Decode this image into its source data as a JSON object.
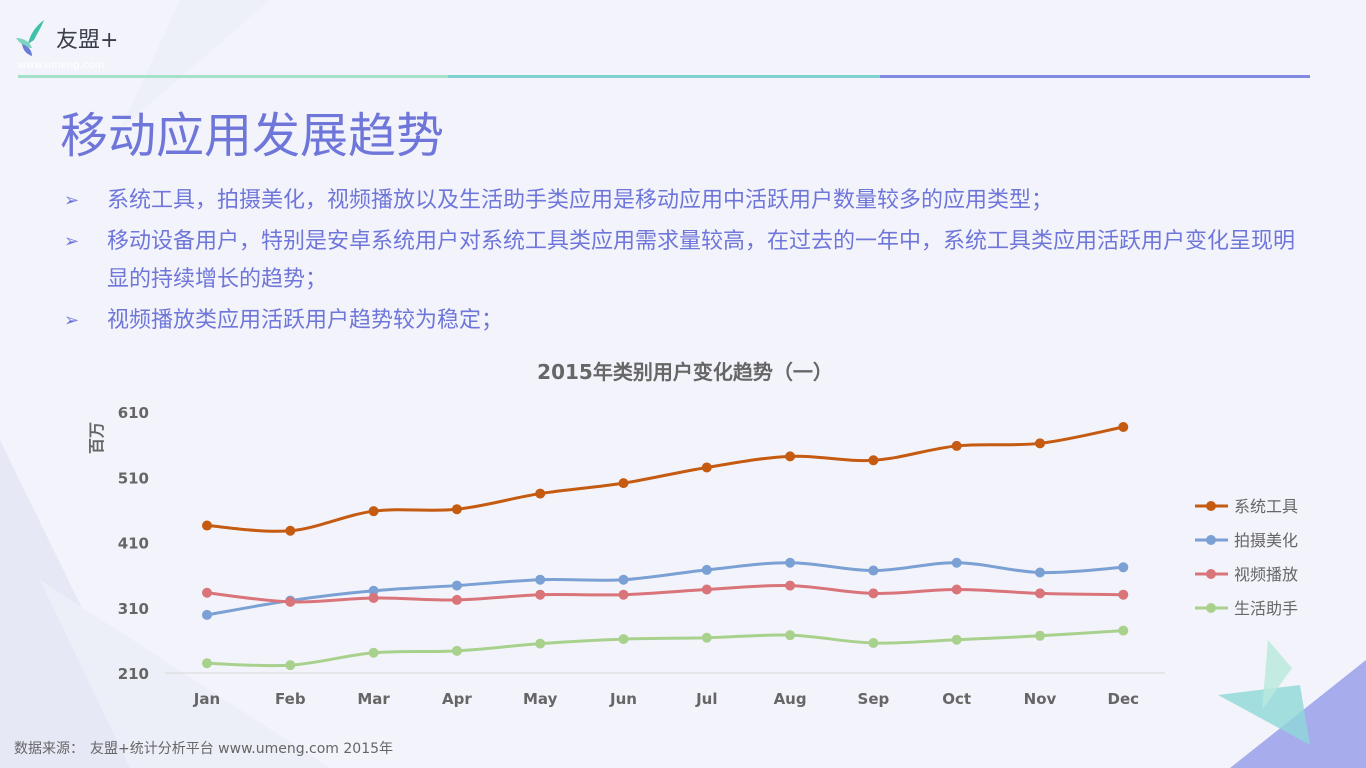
{
  "logo": {
    "name": "友盟+",
    "url": "www.umeng.com"
  },
  "title": "移动应用发展趋势",
  "bullets": [
    "系统工具，拍摄美化，视频播放以及生活助手类应用是移动应用中活跃用户数量较多的应用类型；",
    "移动设备用户，特别是安卓系统用户对系统工具类应用需求量较高，在过去的一年中，系统工具类应用活跃用户变化呈现明显的持续增长的趋势；",
    "视频播放类应用活跃用户趋势较为稳定；"
  ],
  "bullet_icon": "arrow-right-icon",
  "footer": {
    "label": "数据来源：",
    "source": "友盟+统计分析平台 www.umeng.com 2015年"
  },
  "colors": {
    "accent": "#6f76d9"
  },
  "chart_data": {
    "type": "line",
    "title": "2015年类别用户变化趋势（一）",
    "ylabel": "百万",
    "xlabel": "",
    "categories": [
      "Jan",
      "Feb",
      "Mar",
      "Apr",
      "May",
      "Jun",
      "Jul",
      "Aug",
      "Sep",
      "Oct",
      "Nov",
      "Dec"
    ],
    "ylim": [
      210,
      610
    ],
    "yticks": [
      210,
      310,
      410,
      510,
      610
    ],
    "grid": false,
    "legend": "right",
    "series": [
      {
        "name": "系统工具",
        "color": "#c55a11",
        "values": [
          436,
          428,
          458,
          461,
          485,
          501,
          525,
          542,
          536,
          558,
          562,
          587
        ]
      },
      {
        "name": "拍摄美化",
        "color": "#7aa0d4",
        "values": [
          299,
          321,
          336,
          344,
          353,
          353,
          368,
          379,
          367,
          379,
          364,
          372
        ]
      },
      {
        "name": "视频播放",
        "color": "#d9747a",
        "values": [
          333,
          319,
          325,
          322,
          330,
          330,
          338,
          344,
          332,
          338,
          332,
          330
        ]
      },
      {
        "name": "生活助手",
        "color": "#a9d18e",
        "values": [
          225,
          222,
          241,
          244,
          255,
          262,
          264,
          268,
          256,
          261,
          267,
          275
        ]
      }
    ]
  }
}
